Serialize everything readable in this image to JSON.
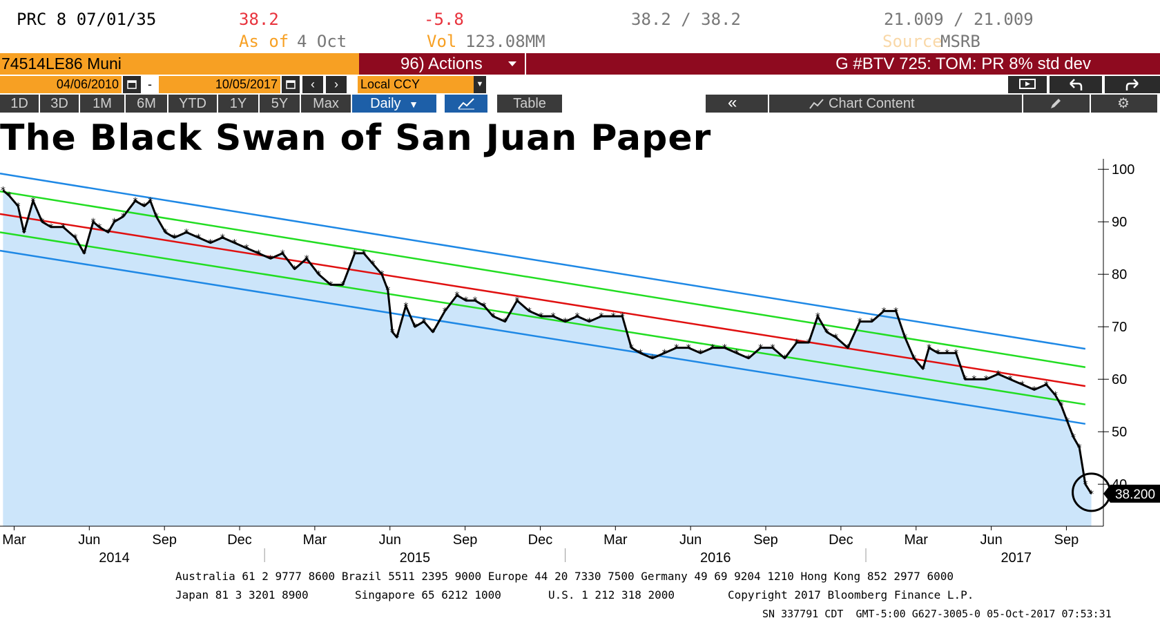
{
  "quote": {
    "security": "PRC 8 07/01/35",
    "last_price": "38.2",
    "as_of_label": "As of",
    "as_of_value": "4 Oct",
    "change": "-5.8",
    "volume_label": "Vol",
    "volume_value": "123.08MM",
    "bid_ask": "38.2 / 38.2",
    "yields": "21.009 / 21.009",
    "source_label": "Source",
    "source_value": "MSRB"
  },
  "security_bar": {
    "ticker": "74514LE86 Muni",
    "actions_label": "96) Actions",
    "study": "G #BTV 725: TOM: PR 8% std dev"
  },
  "range": {
    "start_date": "04/06/2010",
    "separator": "-",
    "end_date": "10/05/2017",
    "currency": "Local CCY"
  },
  "toolbar": {
    "periods": [
      "1D",
      "3D",
      "1M",
      "6M",
      "YTD",
      "1Y",
      "5Y",
      "Max"
    ],
    "frequency": "Daily",
    "table_label": "Table",
    "chart_content_label": "Chart Content"
  },
  "colors": {
    "orange": "#f7a023",
    "maroon": "#8e0a1f",
    "area_fill": "#cce5fa",
    "blue_band": "#1e88e5",
    "green_band": "#22dd22",
    "red_band": "#e01010"
  },
  "chart_data": {
    "type": "line",
    "title": "The Black Swan of San Juan Paper",
    "x_ticks": [
      "Mar",
      "Jun",
      "Sep",
      "Dec",
      "Mar",
      "Jun",
      "Sep",
      "Dec",
      "Mar",
      "Jun",
      "Sep",
      "Dec",
      "Mar",
      "Jun",
      "Sep"
    ],
    "x_ticks_pos": [
      2014.167,
      2014.417,
      2014.667,
      2014.917,
      2015.167,
      2015.417,
      2015.667,
      2015.917,
      2016.167,
      2016.417,
      2016.667,
      2016.917,
      2017.167,
      2017.417,
      2017.667
    ],
    "years": [
      "2014",
      "2015",
      "2016",
      "2017"
    ],
    "years_pos": [
      2014.5,
      2015.5,
      2016.5,
      2017.5
    ],
    "y_ticks": [
      40,
      50,
      60,
      70,
      80,
      90,
      100
    ],
    "ylim": [
      32,
      102
    ],
    "xlim": [
      2014.12,
      2017.79
    ],
    "last_value_label": "38.200",
    "series": [
      {
        "role": "price",
        "x": [
          2014.13,
          2014.15,
          2014.18,
          2014.2,
          2014.23,
          2014.26,
          2014.29,
          2014.33,
          2014.37,
          2014.4,
          2014.43,
          2014.45,
          2014.48,
          2014.5,
          2014.53,
          2014.57,
          2014.6,
          2014.62,
          2014.64,
          2014.67,
          2014.7,
          2014.74,
          2014.78,
          2014.82,
          2014.86,
          2014.9,
          2014.94,
          2014.98,
          2015.02,
          2015.06,
          2015.1,
          2015.14,
          2015.18,
          2015.22,
          2015.26,
          2015.3,
          2015.33,
          2015.36,
          2015.39,
          2015.41,
          2015.425,
          2015.44,
          2015.47,
          2015.5,
          2015.53,
          2015.56,
          2015.6,
          2015.64,
          2015.67,
          2015.7,
          2015.73,
          2015.76,
          2015.8,
          2015.84,
          2015.88,
          2015.92,
          2015.96,
          2016.0,
          2016.04,
          2016.08,
          2016.12,
          2016.16,
          2016.19,
          2016.22,
          2016.25,
          2016.29,
          2016.33,
          2016.37,
          2016.41,
          2016.45,
          2016.49,
          2016.53,
          2016.57,
          2016.61,
          2016.65,
          2016.69,
          2016.73,
          2016.77,
          2016.81,
          2016.84,
          2016.87,
          2016.9,
          2016.94,
          2016.98,
          2017.02,
          2017.06,
          2017.1,
          2017.13,
          2017.16,
          2017.19,
          2017.21,
          2017.24,
          2017.27,
          2017.3,
          2017.33,
          2017.36,
          2017.4,
          2017.44,
          2017.48,
          2017.52,
          2017.56,
          2017.6,
          2017.63,
          2017.65,
          2017.67,
          2017.69,
          2017.71,
          2017.73,
          2017.75
        ],
        "y": [
          96,
          95,
          93,
          88,
          94,
          90,
          89,
          89,
          87,
          84,
          90,
          89,
          88,
          90,
          91,
          94,
          93,
          94,
          91,
          88,
          87,
          88,
          87,
          86,
          87,
          86,
          85,
          84,
          83,
          84,
          81,
          83,
          80,
          78,
          78,
          84,
          84,
          82,
          80,
          77,
          69,
          68,
          74,
          70,
          71,
          69,
          73,
          76,
          75,
          75,
          74,
          72,
          71,
          75,
          73,
          72,
          72,
          71,
          72,
          71,
          72,
          72,
          72,
          66,
          65,
          64,
          65,
          66,
          66,
          65,
          66,
          66,
          65,
          64,
          66,
          66,
          64,
          67,
          67,
          72,
          69,
          68,
          66,
          71,
          71,
          73,
          73,
          68,
          64,
          62,
          66,
          65,
          65,
          65,
          60,
          60,
          60,
          61,
          60,
          59,
          58,
          59,
          57,
          55,
          52,
          49,
          47,
          40,
          38.2
        ]
      },
      {
        "role": "regression",
        "x": [
          2014.12,
          2017.73
        ],
        "y": [
          91.5,
          58.7
        ]
      },
      {
        "role": "upper_1sd",
        "x": [
          2014.12,
          2017.73
        ],
        "y": [
          95.8,
          62.3
        ]
      },
      {
        "role": "lower_1sd",
        "x": [
          2014.12,
          2017.73
        ],
        "y": [
          88.0,
          55.2
        ]
      },
      {
        "role": "upper_2sd",
        "x": [
          2014.12,
          2017.73
        ],
        "y": [
          99.2,
          65.8
        ]
      },
      {
        "role": "lower_2sd",
        "x": [
          2014.12,
          2017.73
        ],
        "y": [
          84.5,
          51.5
        ]
      }
    ]
  },
  "footer": {
    "line1": "Australia 61 2 9777 8600 Brazil 5511 2395 9000 Europe 44 20 7330 7500 Germany 49 69 9204 1210 Hong Kong 852 2977 6000",
    "line2_a": "Japan 81 3 3201 8900",
    "line2_b": "Singapore 65 6212 1000",
    "line2_c": "U.S. 1 212 318 2000",
    "line2_d": "Copyright 2017 Bloomberg Finance L.P.",
    "line3": "SN 337791 CDT  GMT-5:00 G627-3005-0 05-Oct-2017 07:53:31"
  }
}
